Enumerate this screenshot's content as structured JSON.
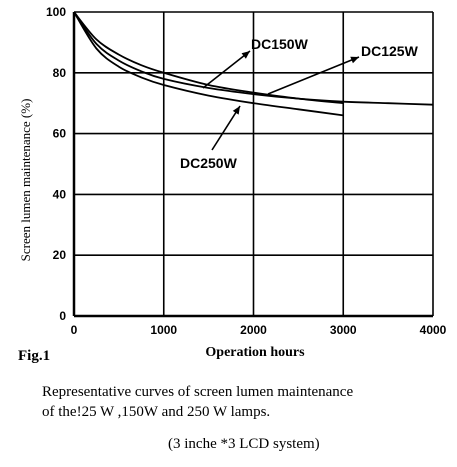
{
  "chart_data": {
    "type": "line",
    "title": "",
    "xlabel": "Operation hours",
    "ylabel": "Screen lumen maintenance (%)",
    "xlim": [
      0,
      4000
    ],
    "ylim": [
      0,
      100
    ],
    "xticks": [
      0,
      1000,
      2000,
      3000,
      4000
    ],
    "yticks": [
      0,
      20,
      40,
      60,
      80,
      100
    ],
    "grid": true,
    "series": [
      {
        "name": "DC150W",
        "x": [
          0,
          250,
          500,
          750,
          1000,
          1500,
          2000,
          2500,
          3000
        ],
        "y": [
          100,
          91,
          86,
          82.5,
          80,
          76,
          73.5,
          71.5,
          70
        ]
      },
      {
        "name": "DC125W",
        "x": [
          0,
          250,
          500,
          750,
          1000,
          1500,
          2000,
          2500,
          3000,
          3500,
          4000
        ],
        "y": [
          100,
          89.5,
          84,
          80.5,
          78,
          75,
          73,
          71.5,
          70.5,
          70,
          69.5
        ]
      },
      {
        "name": "DC250W",
        "x": [
          0,
          250,
          500,
          750,
          1000,
          1500,
          2000,
          2500,
          3000
        ],
        "y": [
          100,
          88,
          82,
          78.5,
          76,
          72.5,
          70,
          68,
          66
        ]
      }
    ],
    "annotations": [
      {
        "text": "DC150W",
        "target_series": "DC150W"
      },
      {
        "text": "DC125W",
        "target_series": "DC125W"
      },
      {
        "text": "DC250W",
        "target_series": "DC250W"
      }
    ]
  },
  "figure_label": "Fig.1",
  "caption_line1": "Representative curves of screen lumen maintenance",
  "caption_line2": "of the!25 W ,150W and 250 W lamps.",
  "caption_line3": "(3 inche  *3 LCD system)"
}
